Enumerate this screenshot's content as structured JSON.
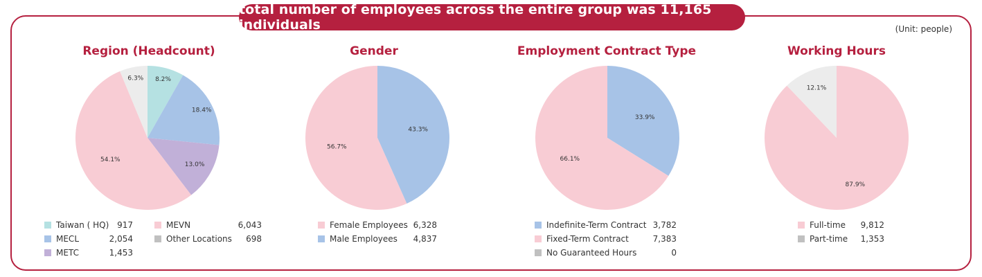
{
  "banner": "total number of employees across the entire group was 11,165 individuals",
  "unit": "(Unit: people)",
  "colors": {
    "accent": "#b5203f",
    "taiwan": "#b5e1e2",
    "mecl": "#a7c3e7",
    "metc": "#c1b0d8",
    "mevn": "#f8ccd4",
    "other": "#ececec",
    "gray_swatch": "#c0c0c0"
  },
  "chart_data": [
    {
      "type": "pie",
      "title": "Region (Headcount)",
      "slices": [
        {
          "name": "Taiwan ( HQ)",
          "value": 917,
          "percent_label": "8.2%",
          "color": "#b5e1e2"
        },
        {
          "name": "MECL",
          "value": 2054,
          "percent_label": "18.4%",
          "color": "#a7c3e7"
        },
        {
          "name": "METC",
          "value": 1453,
          "percent_label": "13.0%",
          "color": "#c1b0d8"
        },
        {
          "name": "MEVN",
          "value": 6043,
          "percent_label": "54.1%",
          "color": "#f8ccd4"
        },
        {
          "name": "Other Locations",
          "value": 698,
          "percent_label": "6.3%",
          "color": "#ececec"
        }
      ],
      "legend": [
        {
          "name": "Taiwan ( HQ)",
          "value": "917",
          "color": "#b5e1e2"
        },
        {
          "name": "MEVN",
          "value": "6,043",
          "color": "#f8ccd4"
        },
        {
          "name": "MECL",
          "value": "2,054",
          "color": "#a7c3e7"
        },
        {
          "name": "Other Locations",
          "value": "698",
          "color": "#c0c0c0"
        },
        {
          "name": "METC",
          "value": "1,453",
          "color": "#c1b0d8"
        }
      ]
    },
    {
      "type": "pie",
      "title": "Gender",
      "slices": [
        {
          "name": "Male Employees",
          "value": 4837,
          "percent_label": "43.3%",
          "color": "#a7c3e7"
        },
        {
          "name": "Female Employees",
          "value": 6328,
          "percent_label": "56.7%",
          "color": "#f8ccd4"
        }
      ],
      "legend": [
        {
          "name": "Female Employees",
          "value": "6,328",
          "color": "#f8ccd4"
        },
        {
          "name": "Male Employees",
          "value": "4,837",
          "color": "#a7c3e7"
        }
      ]
    },
    {
      "type": "pie",
      "title": "Employment Contract Type",
      "slices": [
        {
          "name": "Indefinite-Term Contract",
          "value": 3782,
          "percent_label": "33.9%",
          "color": "#a7c3e7"
        },
        {
          "name": "Fixed-Term Contract",
          "value": 7383,
          "percent_label": "66.1%",
          "color": "#f8ccd4"
        }
      ],
      "legend": [
        {
          "name": "Indefinite-Term Contract",
          "value": "3,782",
          "color": "#a7c3e7"
        },
        {
          "name": "Fixed-Term Contract",
          "value": "7,383",
          "color": "#f8ccd4"
        },
        {
          "name": "No Guaranteed Hours",
          "value": "0",
          "color": "#c0c0c0"
        }
      ]
    },
    {
      "type": "pie",
      "title": "Working Hours",
      "slices": [
        {
          "name": "Full-time",
          "value": 9812,
          "percent_label": "87.9%",
          "color": "#f8ccd4"
        },
        {
          "name": "Part-time",
          "value": 1353,
          "percent_label": "12.1%",
          "color": "#ececec"
        }
      ],
      "legend": [
        {
          "name": "Full-time",
          "value": "9,812",
          "color": "#f8ccd4"
        },
        {
          "name": "Part-time",
          "value": "1,353",
          "color": "#c0c0c0"
        }
      ]
    }
  ]
}
